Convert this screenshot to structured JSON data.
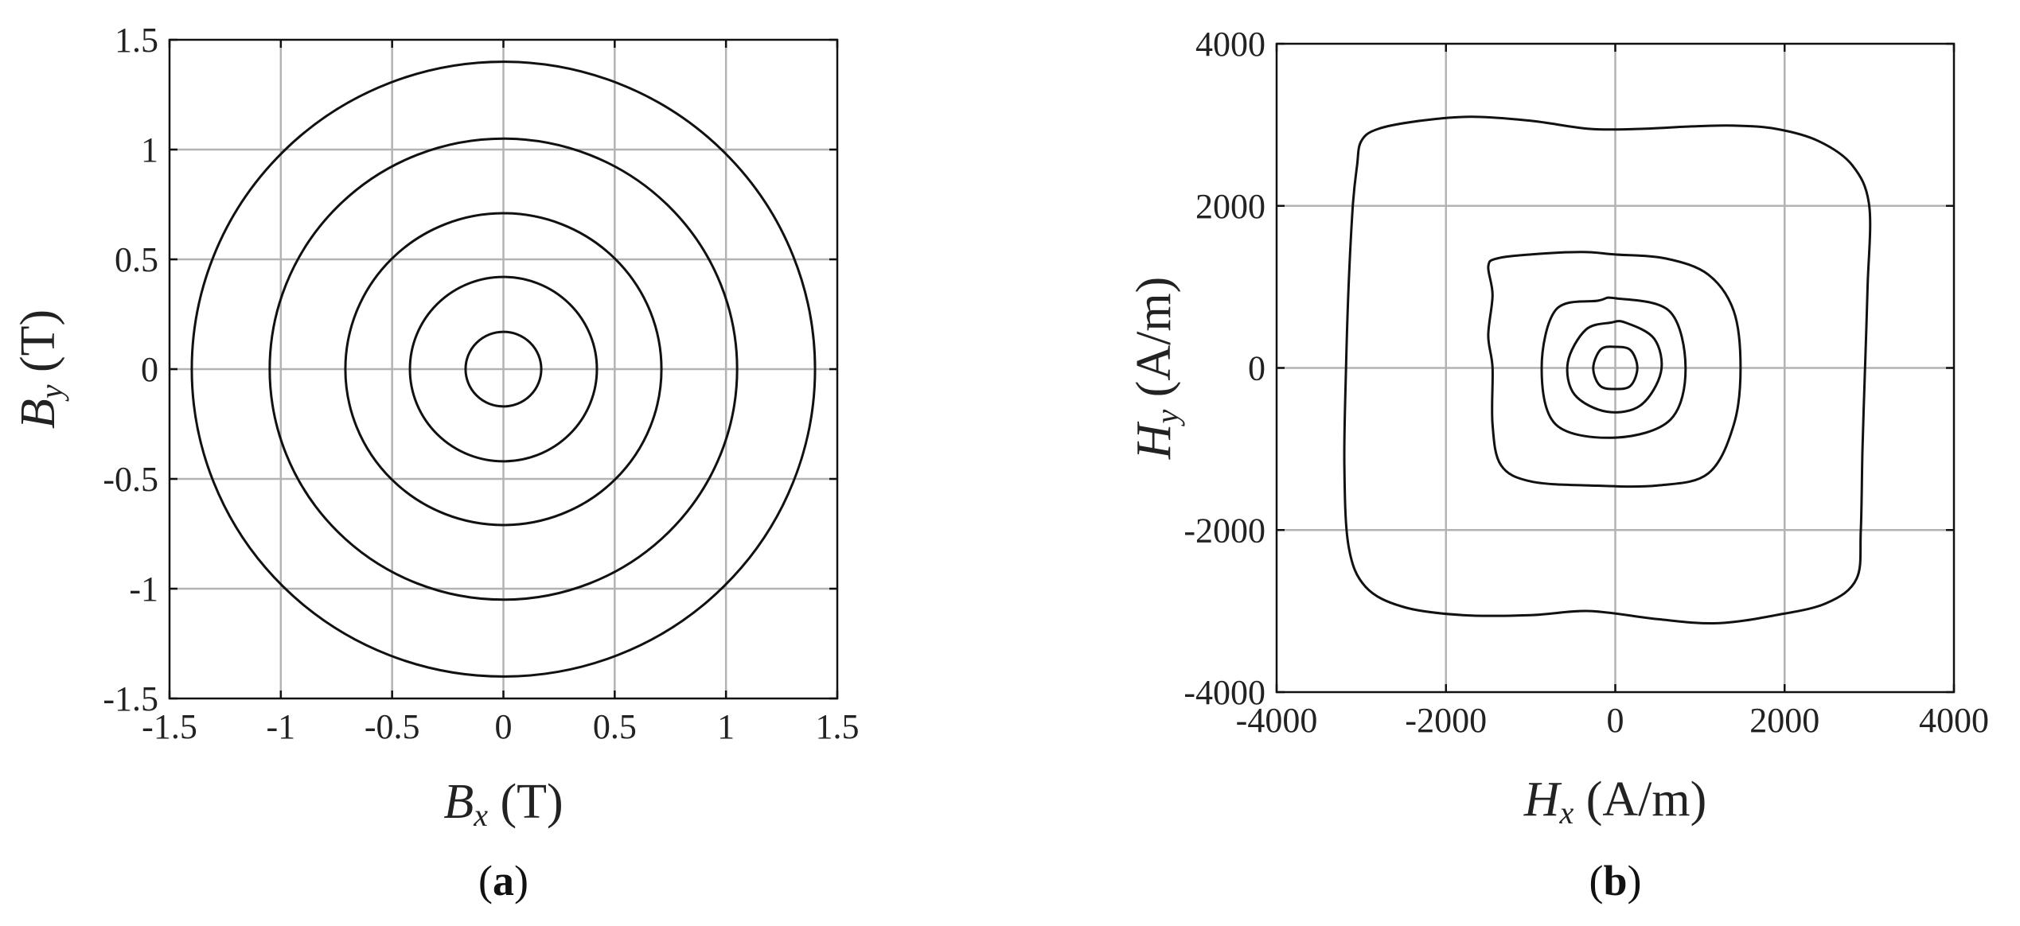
{
  "chart_data": [
    {
      "type": "line",
      "panel_label": "a",
      "xlabel": {
        "symbol": "B",
        "sub": "x",
        "unit": "(T)"
      },
      "ylabel": {
        "symbol": "B",
        "sub": "y",
        "unit": "(T)"
      },
      "xlim": [
        -1.5,
        1.5
      ],
      "ylim": [
        -1.5,
        1.5
      ],
      "xticks": [
        -1.5,
        -1,
        -0.5,
        0,
        0.5,
        1,
        1.5
      ],
      "yticks": [
        -1.5,
        -1,
        -0.5,
        0,
        0.5,
        1,
        1.5
      ],
      "xtick_labels": [
        "-1.5",
        "-1",
        "-0.5",
        "0",
        "0.5",
        "1",
        "1.5"
      ],
      "ytick_labels": [
        "-1.5",
        "-1",
        "-0.5",
        "0",
        "0.5",
        "1",
        "1.5"
      ],
      "grid": true,
      "series": [
        {
          "shape": "circle",
          "rx": 0.17,
          "ry": 0.17
        },
        {
          "shape": "circle",
          "rx": 0.42,
          "ry": 0.42
        },
        {
          "shape": "circle",
          "rx": 0.71,
          "ry": 0.71
        },
        {
          "shape": "circle",
          "rx": 1.05,
          "ry": 1.05
        },
        {
          "shape": "circle",
          "rx": 1.4,
          "ry": 1.4
        }
      ],
      "line_color": "#111111"
    },
    {
      "type": "line",
      "panel_label": "b",
      "xlabel": {
        "symbol": "H",
        "sub": "x",
        "unit": "(A/m)"
      },
      "ylabel": {
        "symbol": "H",
        "sub": "y",
        "unit": "(A/m)"
      },
      "xlim": [
        -4000,
        4000
      ],
      "ylim": [
        -4000,
        4000
      ],
      "xticks": [
        -4000,
        -2000,
        0,
        2000,
        4000
      ],
      "yticks": [
        -4000,
        -2000,
        0,
        2000,
        4000
      ],
      "xtick_labels": [
        "-4000",
        "-2000",
        "0",
        "2000",
        "4000"
      ],
      "ytick_labels": [
        "-4000",
        "-2000",
        "0",
        "2000",
        "4000"
      ],
      "grid": true,
      "series": [
        {
          "shape": "closed",
          "points": [
            [
              0,
              260
            ],
            [
              -170,
              230
            ],
            [
              -260,
              0
            ],
            [
              -180,
              -220
            ],
            [
              0,
              -260
            ],
            [
              180,
              -220
            ],
            [
              260,
              0
            ],
            [
              180,
              220
            ],
            [
              0,
              260
            ]
          ]
        },
        {
          "shape": "closed",
          "points": [
            [
              -50,
              560
            ],
            [
              -350,
              470
            ],
            [
              -560,
              70
            ],
            [
              -480,
              -330
            ],
            [
              -100,
              -540
            ],
            [
              300,
              -460
            ],
            [
              540,
              -50
            ],
            [
              460,
              360
            ],
            [
              120,
              560
            ],
            [
              -50,
              560
            ]
          ]
        },
        {
          "shape": "closed",
          "points": [
            [
              -200,
              830
            ],
            [
              -700,
              720
            ],
            [
              -870,
              0
            ],
            [
              -700,
              -700
            ],
            [
              0,
              -860
            ],
            [
              650,
              -640
            ],
            [
              830,
              0
            ],
            [
              640,
              700
            ],
            [
              0,
              860
            ],
            [
              -200,
              830
            ]
          ]
        },
        {
          "shape": "closed",
          "points": [
            [
              -1500,
              1250
            ],
            [
              -1400,
              1350
            ],
            [
              -1000,
              1400
            ],
            [
              -400,
              1430
            ],
            [
              0,
              1400
            ],
            [
              600,
              1350
            ],
            [
              1100,
              1150
            ],
            [
              1400,
              700
            ],
            [
              1480,
              0
            ],
            [
              1400,
              -700
            ],
            [
              1100,
              -1300
            ],
            [
              500,
              -1450
            ],
            [
              -300,
              -1450
            ],
            [
              -1000,
              -1400
            ],
            [
              -1350,
              -1200
            ],
            [
              -1450,
              -700
            ],
            [
              -1450,
              0
            ],
            [
              -1500,
              400
            ],
            [
              -1450,
              900
            ],
            [
              -1500,
              1250
            ]
          ]
        },
        {
          "shape": "closed",
          "points": [
            [
              -3000,
              2800
            ],
            [
              -2800,
              2950
            ],
            [
              -2300,
              3050
            ],
            [
              -1700,
              3100
            ],
            [
              -1000,
              3050
            ],
            [
              -300,
              2950
            ],
            [
              300,
              2950
            ],
            [
              900,
              2980
            ],
            [
              1400,
              2990
            ],
            [
              1900,
              2950
            ],
            [
              2400,
              2800
            ],
            [
              2800,
              2500
            ],
            [
              3000,
              2000
            ],
            [
              2980,
              1000
            ],
            [
              2950,
              0
            ],
            [
              2920,
              -1000
            ],
            [
              2900,
              -2000
            ],
            [
              2850,
              -2600
            ],
            [
              2500,
              -2900
            ],
            [
              1900,
              -3050
            ],
            [
              1200,
              -3150
            ],
            [
              500,
              -3100
            ],
            [
              -300,
              -3000
            ],
            [
              -1000,
              -3050
            ],
            [
              -1800,
              -3050
            ],
            [
              -2500,
              -2950
            ],
            [
              -2950,
              -2700
            ],
            [
              -3150,
              -2200
            ],
            [
              -3200,
              -1200
            ],
            [
              -3180,
              0
            ],
            [
              -3150,
              1000
            ],
            [
              -3100,
              2000
            ],
            [
              -3050,
              2500
            ],
            [
              -3000,
              2800
            ]
          ]
        }
      ],
      "line_color": "#111111"
    }
  ]
}
